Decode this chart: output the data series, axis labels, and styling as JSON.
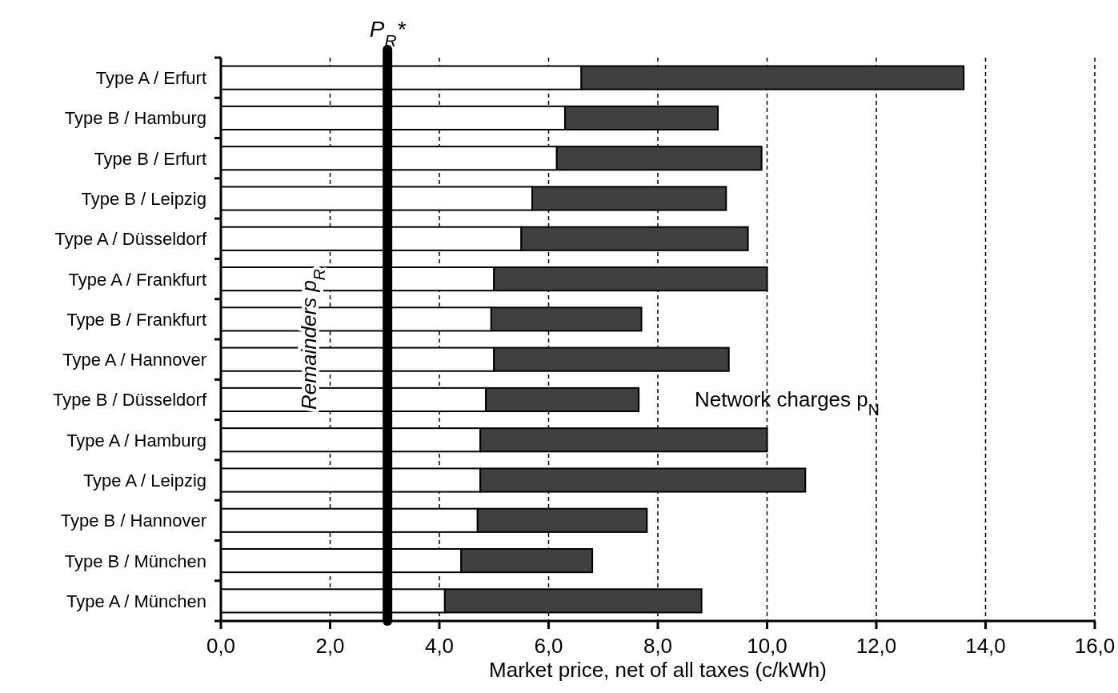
{
  "chart_data": {
    "type": "bar",
    "orientation": "horizontal",
    "stacked": true,
    "xlabel": "Market price, net of all taxes (c/kWh)",
    "categories": [
      "Type A / Erfurt",
      "Type B / Hamburg",
      "Type B / Erfurt",
      "Type B / Leipzig",
      "Type A / Düsseldorf",
      "Type A / Frankfurt",
      "Type B / Frankfurt",
      "Type A / Hannover",
      "Type B / Düsseldorf",
      "Type A / Hamburg",
      "Type A / Leipzig",
      "Type B / Hannover",
      "Type B / München",
      "Type A / München"
    ],
    "series": [
      {
        "name": "Remainders p$_{R}$",
        "color": "#ffffff",
        "values": [
          6.6,
          6.3,
          6.15,
          5.7,
          5.5,
          5.0,
          4.95,
          5.0,
          4.85,
          4.75,
          4.75,
          4.7,
          4.4,
          4.1
        ]
      },
      {
        "name": "Network charges p$_{N}$",
        "color": "#404040",
        "values": [
          7.0,
          2.8,
          3.75,
          3.55,
          4.15,
          5.0,
          2.75,
          4.3,
          2.8,
          5.25,
          5.95,
          3.1,
          2.4,
          4.7
        ]
      }
    ],
    "xlim": [
      0,
      16
    ],
    "xticks": [
      {
        "value": 0,
        "label": "0,0"
      },
      {
        "value": 2,
        "label": "2,0"
      },
      {
        "value": 4,
        "label": "4,0"
      },
      {
        "value": 6,
        "label": "6,0"
      },
      {
        "value": 8,
        "label": "8,0"
      },
      {
        "value": 10,
        "label": "10,0"
      },
      {
        "value": 12,
        "label": "12,0"
      },
      {
        "value": 14,
        "label": "14,0"
      },
      {
        "value": 16,
        "label": "16,0"
      }
    ],
    "grid": "x",
    "ref_lines": [
      {
        "axis": "x",
        "value": 3.05,
        "label": "P$_{R}$*",
        "color": "#000000"
      }
    ]
  }
}
